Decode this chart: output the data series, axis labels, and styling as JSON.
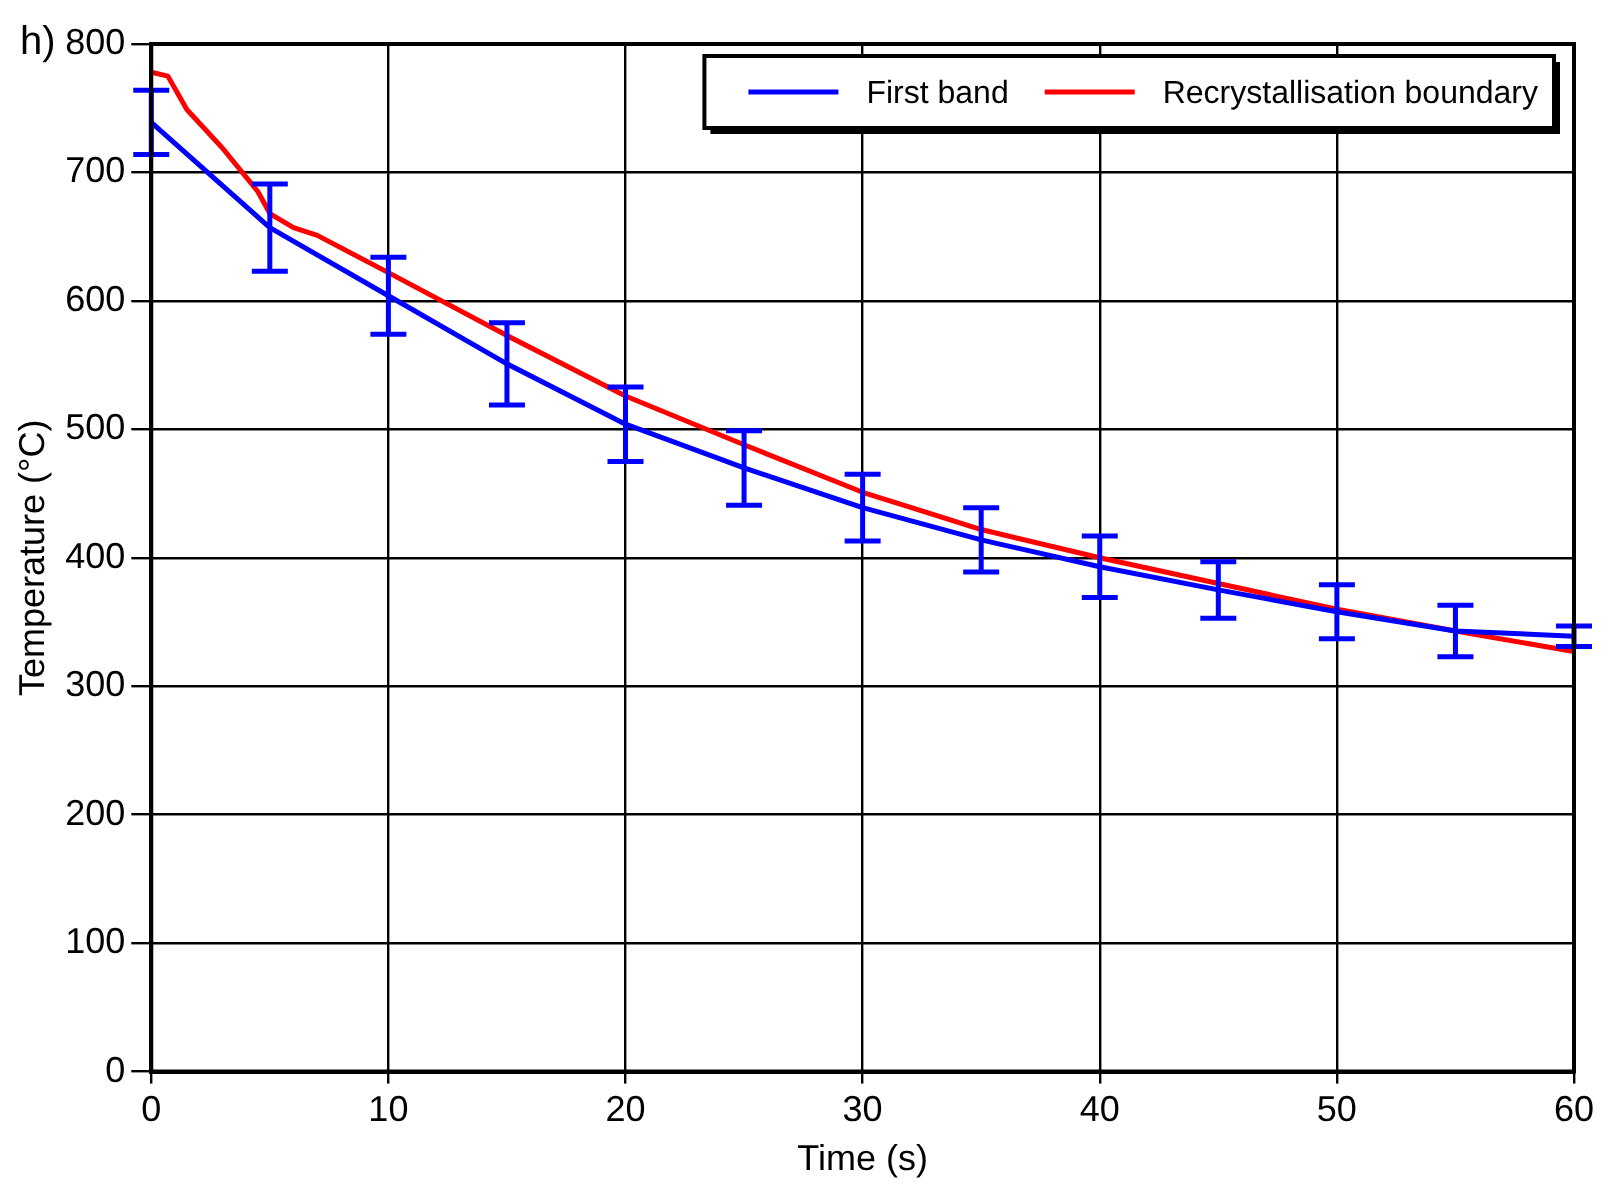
{
  "chart_data": {
    "type": "line",
    "xlabel": "Time (s)",
    "ylabel": "Temperature (°C)",
    "annotations": [
      "h)"
    ],
    "xlim": [
      0,
      60
    ],
    "xticks": [
      0,
      10,
      20,
      30,
      40,
      50,
      60
    ],
    "ylim": [
      0,
      800
    ],
    "yticks": [
      0,
      100,
      200,
      300,
      400,
      500,
      600,
      700,
      800
    ],
    "grid": true,
    "legend": "top right",
    "marker": "none",
    "line_style": "solid",
    "series": [
      {
        "name": "First band",
        "color": "#0000ff",
        "x": [
          0,
          5,
          10,
          15,
          20,
          25,
          30,
          35,
          40,
          45,
          50,
          55,
          60
        ],
        "values": [
          739,
          657,
          604,
          551,
          504,
          470,
          439,
          414,
          393,
          375,
          358,
          343,
          339
        ],
        "errors": [
          25,
          34,
          30,
          32,
          29,
          29,
          26,
          25,
          24,
          22,
          21,
          20,
          8
        ]
      },
      {
        "name": "Recrystallisation boundary",
        "color": "#ff0000",
        "x": [
          0,
          0.7,
          1.5,
          3,
          4.5,
          5,
          6,
          7,
          10,
          15,
          20,
          25,
          30,
          35,
          40,
          45,
          50,
          55,
          60
        ],
        "values": [
          778,
          775,
          749,
          719,
          685,
          668,
          657,
          651,
          622,
          573,
          526,
          488,
          451,
          422,
          400,
          380,
          360,
          343,
          327
        ]
      }
    ]
  }
}
